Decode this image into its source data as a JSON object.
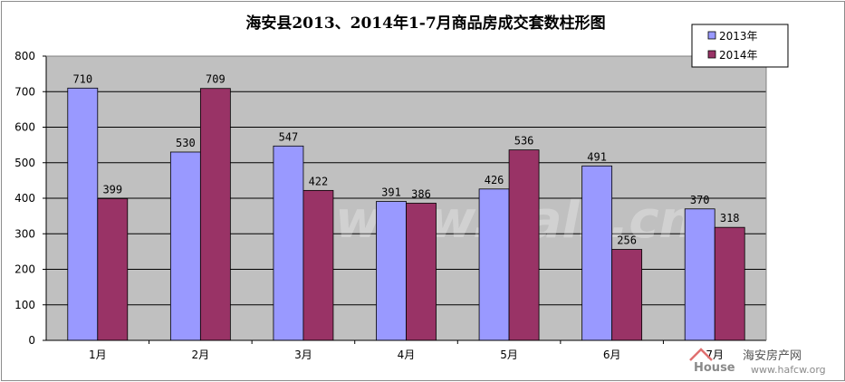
{
  "chart_data": {
    "type": "bar",
    "title": "海安县2013、2014年1-7月商品房成交套数柱形图",
    "categories": [
      "1月",
      "2月",
      "3月",
      "4月",
      "5月",
      "6月",
      "7月"
    ],
    "series": [
      {
        "name": "2013年",
        "values": [
          710,
          530,
          547,
          391,
          426,
          491,
          370
        ],
        "color": "#9999ff"
      },
      {
        "name": "2014年",
        "values": [
          399,
          709,
          422,
          386,
          536,
          256,
          318
        ],
        "color": "#993366"
      }
    ],
    "ylim": [
      0,
      800
    ],
    "yticks": [
      "0",
      "100",
      "200",
      "300",
      "400",
      "500",
      "600",
      "700",
      "800"
    ],
    "xlabel": "",
    "ylabel": "",
    "grid": true,
    "legend_position": "top-right",
    "plot_background": "#c0c0c0"
  },
  "watermark": {
    "center_text": "www.hals.cn",
    "house_logo_text": "House",
    "site_name": "海安房产网",
    "site_url": "www.hafcw.org"
  }
}
